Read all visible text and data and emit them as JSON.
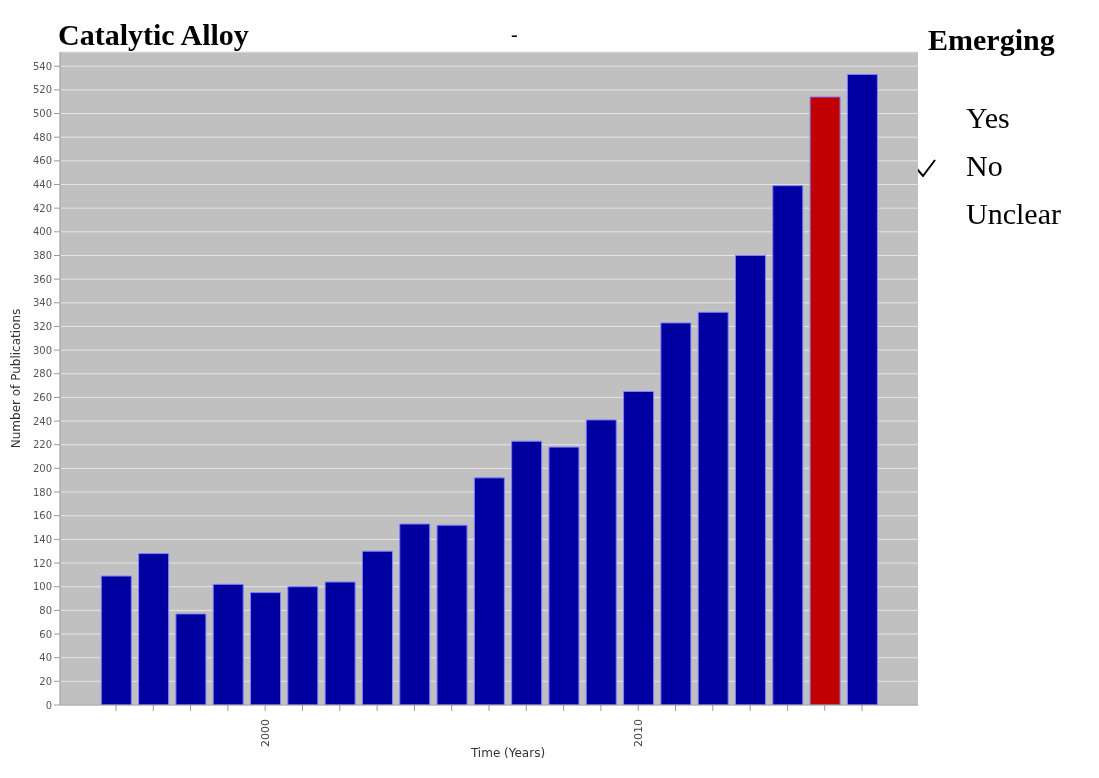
{
  "chart_data": {
    "type": "bar",
    "title": "Catalytic Alloy",
    "xlabel": "Time (Years)",
    "ylabel": "Number of Publications",
    "x": [
      1996,
      1997,
      1998,
      1999,
      2000,
      2001,
      2002,
      2003,
      2004,
      2005,
      2006,
      2007,
      2008,
      2009,
      2010,
      2011,
      2012,
      2013,
      2014,
      2015,
      2016
    ],
    "values": [
      109,
      128,
      77,
      102,
      95,
      100,
      104,
      130,
      153,
      152,
      192,
      223,
      218,
      241,
      265,
      323,
      332,
      380,
      439,
      514,
      533
    ],
    "colors": [
      "#0000a0",
      "#0000a0",
      "#0000a0",
      "#0000a0",
      "#0000a0",
      "#0000a0",
      "#0000a0",
      "#0000a0",
      "#0000a0",
      "#0000a0",
      "#0000a0",
      "#0000a0",
      "#0000a0",
      "#0000a0",
      "#0000a0",
      "#0000a0",
      "#0000a0",
      "#0000a0",
      "#0000a0",
      "#c00000",
      "#0000a0"
    ],
    "xlim": [
      1994.5,
      2017.5
    ],
    "xticks": [
      {
        "value": 1996,
        "label": null
      },
      {
        "value": 1997,
        "label": null
      },
      {
        "value": 1998,
        "label": null
      },
      {
        "value": 1999,
        "label": null
      },
      2000,
      {
        "value": 2001,
        "label": null
      },
      {
        "value": 2002,
        "label": null
      },
      {
        "value": 2003,
        "label": null
      },
      {
        "value": 2004,
        "label": null
      },
      {
        "value": 2005,
        "label": null
      },
      {
        "value": 2006,
        "label": null
      },
      {
        "value": 2007,
        "label": null
      },
      {
        "value": 2008,
        "label": null
      },
      {
        "value": 2009,
        "label": null
      },
      2010,
      {
        "value": 2011,
        "label": null
      },
      {
        "value": 2012,
        "label": null
      },
      {
        "value": 2013,
        "label": null
      },
      {
        "value": 2014,
        "label": null
      },
      {
        "value": 2015,
        "label": null
      },
      {
        "value": 2016,
        "label": null
      }
    ],
    "ylim": [
      0,
      552
    ],
    "yticks": [
      0,
      20,
      40,
      60,
      80,
      100,
      120,
      140,
      160,
      180,
      200,
      220,
      240,
      260,
      280,
      300,
      320,
      340,
      360,
      380,
      400,
      420,
      440,
      460,
      480,
      500,
      520,
      540
    ],
    "grid": "y",
    "annotations": [
      "-",
      "Emerging",
      "Yes",
      "No",
      "Unclear"
    ]
  }
}
